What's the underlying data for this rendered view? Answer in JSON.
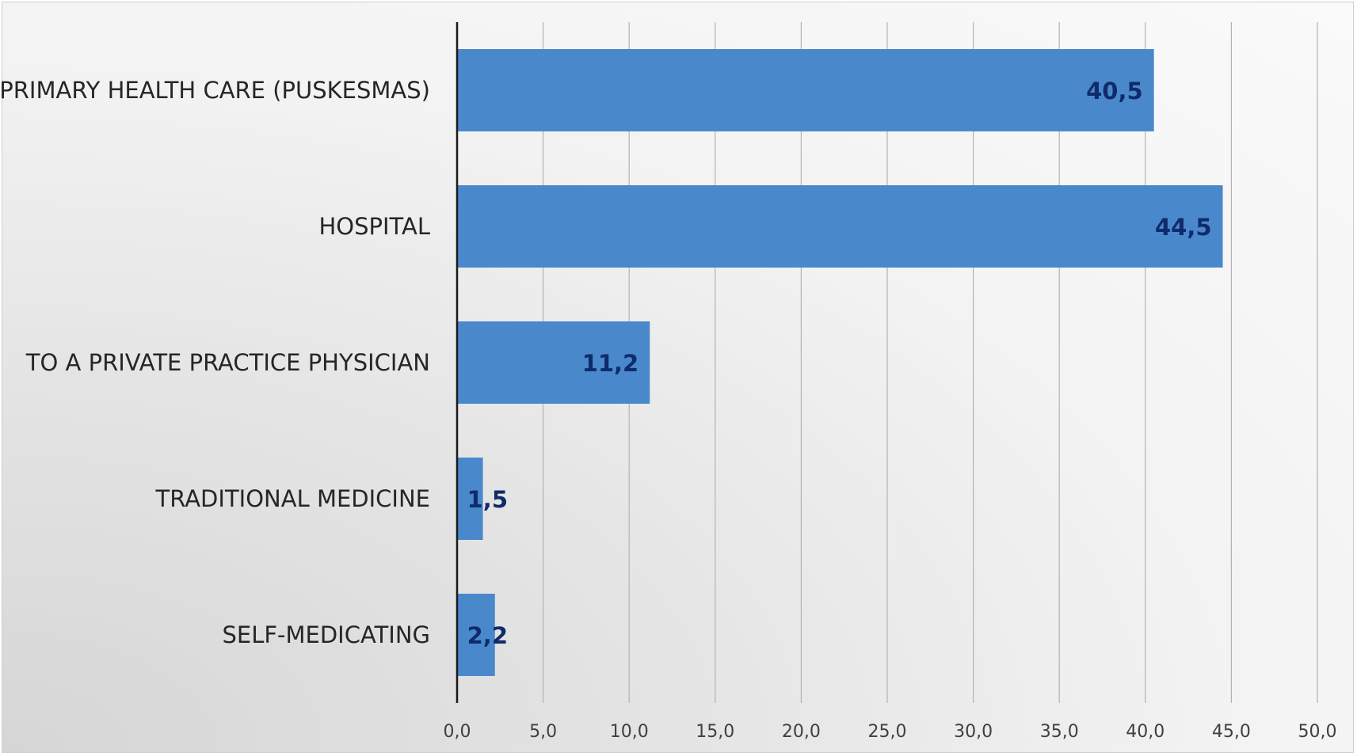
{
  "chart_data": {
    "type": "bar",
    "orientation": "horizontal",
    "title": "",
    "xlabel": "",
    "ylabel": "",
    "categories": [
      "PRIMARY HEALTH CARE (PUSKESMAS)",
      "HOSPITAL",
      "TO A PRIVATE PRACTICE PHYSICIAN",
      "TRADITIONAL MEDICINE",
      "SELF-MEDICATING"
    ],
    "values": [
      40.5,
      44.5,
      11.2,
      1.5,
      2.2
    ],
    "value_labels": [
      "40,5",
      "44,5",
      "11,2",
      "1,5",
      "2,2"
    ],
    "xlim": [
      0,
      50
    ],
    "x_ticks": [
      0,
      5,
      10,
      15,
      20,
      25,
      30,
      35,
      40,
      45,
      50
    ],
    "x_tick_labels": [
      "0,0",
      "5,0",
      "10,0",
      "15,0",
      "20,0",
      "25,0",
      "30,0",
      "35,0",
      "40,0",
      "45,0",
      "50,0"
    ],
    "grid": true,
    "legend": "none",
    "colors": {
      "bar": "#4a88cc",
      "data_label": "#0f2b6b",
      "grid": "#b3b3b3",
      "axis": "#1a1a1a"
    }
  }
}
